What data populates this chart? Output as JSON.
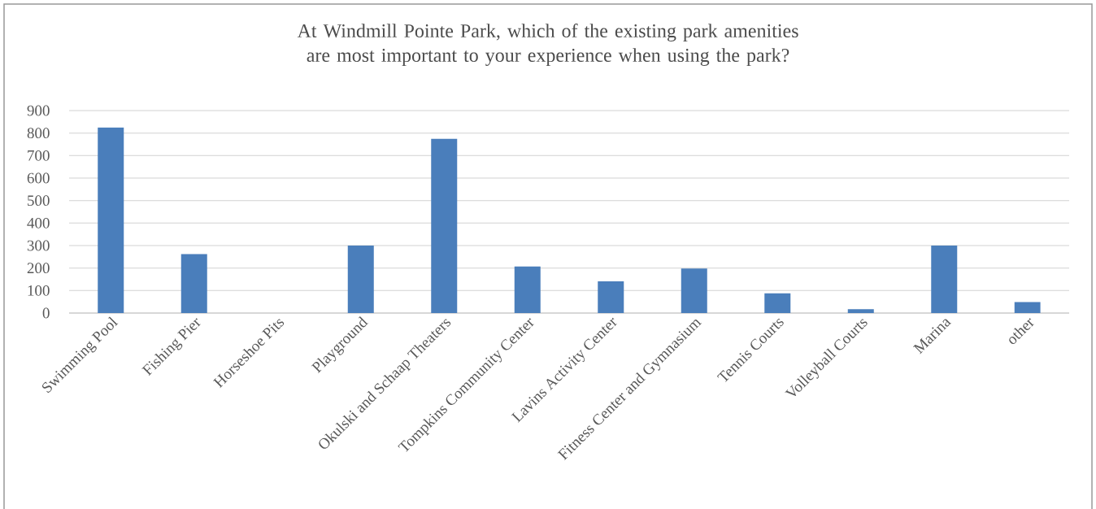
{
  "chart_data": {
    "type": "bar",
    "title": "At Windmill Pointe Park, which of the existing park amenities are most important to your experience when using the park?",
    "categories": [
      "Swimming Pool",
      "Fishing Pier",
      "Horseshoe Pits",
      "Playground",
      "Okulski and Schaap Theaters",
      "Tompkins Community Center",
      "Lavins Activity Center",
      "Fitness Center and Gymnasium",
      "Tennis Courts",
      "Volleyball Courts",
      "Marina",
      "other"
    ],
    "values": [
      825,
      262,
      0,
      300,
      774,
      207,
      141,
      198,
      88,
      17,
      300,
      49
    ],
    "color": "#4a7ebb",
    "ylim": [
      0,
      900
    ],
    "yticks": [
      0,
      100,
      200,
      300,
      400,
      500,
      600,
      700,
      800,
      900
    ],
    "grid": "y"
  }
}
